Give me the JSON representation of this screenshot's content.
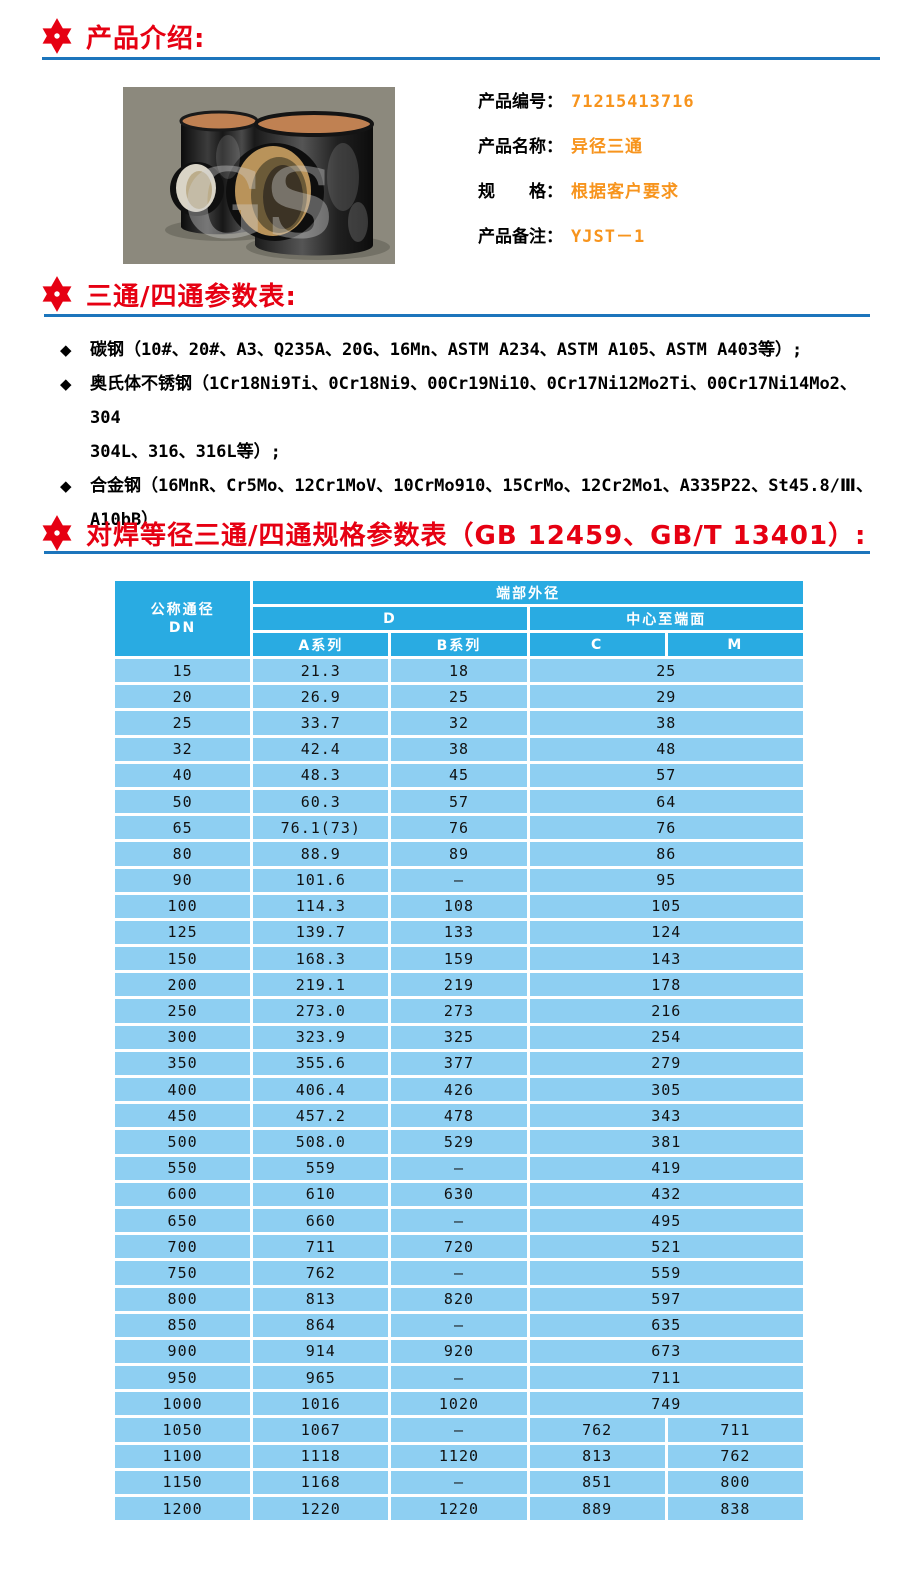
{
  "colors": {
    "accent_red": "#e60012",
    "rule_blue": "#1c75bc",
    "value_orange": "#f7941d",
    "table_header_blue": "#29abe2",
    "table_cell_blue": "#8ecff2"
  },
  "sections": {
    "intro_title": "产品介绍:",
    "params_title": "三通/四通参数表:",
    "spec_title": "对焊等径三通/四通规格参数表（GB 12459、GB/T 13401）:"
  },
  "product": {
    "watermark": "GS",
    "fields": [
      {
        "label": "产品编号：",
        "value": "71215413716"
      },
      {
        "label": "产品名称：",
        "value": "异径三通"
      },
      {
        "label": "规　　格：",
        "value": "根据客户要求"
      },
      {
        "label": "产品备注：",
        "value": "YJST－1"
      }
    ]
  },
  "materials": {
    "items": [
      {
        "lines": [
          "碳钢（10#、20#、A3、Q235A、20G、16Mn、ASTM A234、ASTM A105、ASTM A403等）;"
        ]
      },
      {
        "lines": [
          "奥氏体不锈钢（1Cr18Ni9Ti、0Cr18Ni9、00Cr19Ni10、0Cr17Ni12Mo2Ti、00Cr17Ni14Mo2、304",
          "304L、316、316L等）;"
        ]
      },
      {
        "lines": [
          "合金钢（16MnR、Cr5Mo、12Cr1MoV、10CrMo910、15CrMo、12Cr2Mo1、A335P22、St45.8/Ⅲ、",
          "A10bB）"
        ]
      }
    ]
  },
  "spec_table": {
    "header": {
      "dn_line1": "公称通径",
      "dn_line2": "DN",
      "end_od": "端部外径",
      "d": "D",
      "center_to_end": "中心至端面",
      "a_series": "A系列",
      "b_series": "B系列",
      "c": "C",
      "m": "M"
    },
    "rows": [
      {
        "dn": "15",
        "a": "21.3",
        "b": "18",
        "cm": "25"
      },
      {
        "dn": "20",
        "a": "26.9",
        "b": "25",
        "cm": "29"
      },
      {
        "dn": "25",
        "a": "33.7",
        "b": "32",
        "cm": "38"
      },
      {
        "dn": "32",
        "a": "42.4",
        "b": "38",
        "cm": "48"
      },
      {
        "dn": "40",
        "a": "48.3",
        "b": "45",
        "cm": "57"
      },
      {
        "dn": "50",
        "a": "60.3",
        "b": "57",
        "cm": "64"
      },
      {
        "dn": "65",
        "a": "76.1(73)",
        "b": "76",
        "cm": "76"
      },
      {
        "dn": "80",
        "a": "88.9",
        "b": "89",
        "cm": "86"
      },
      {
        "dn": "90",
        "a": "101.6",
        "b": "—",
        "cm": "95"
      },
      {
        "dn": "100",
        "a": "114.3",
        "b": "108",
        "cm": "105"
      },
      {
        "dn": "125",
        "a": "139.7",
        "b": "133",
        "cm": "124"
      },
      {
        "dn": "150",
        "a": "168.3",
        "b": "159",
        "cm": "143"
      },
      {
        "dn": "200",
        "a": "219.1",
        "b": "219",
        "cm": "178"
      },
      {
        "dn": "250",
        "a": "273.0",
        "b": "273",
        "cm": "216"
      },
      {
        "dn": "300",
        "a": "323.9",
        "b": "325",
        "cm": "254"
      },
      {
        "dn": "350",
        "a": "355.6",
        "b": "377",
        "cm": "279"
      },
      {
        "dn": "400",
        "a": "406.4",
        "b": "426",
        "cm": "305"
      },
      {
        "dn": "450",
        "a": "457.2",
        "b": "478",
        "cm": "343"
      },
      {
        "dn": "500",
        "a": "508.0",
        "b": "529",
        "cm": "381"
      },
      {
        "dn": "550",
        "a": "559",
        "b": "—",
        "cm": "419"
      },
      {
        "dn": "600",
        "a": "610",
        "b": "630",
        "cm": "432"
      },
      {
        "dn": "650",
        "a": "660",
        "b": "—",
        "cm": "495"
      },
      {
        "dn": "700",
        "a": "711",
        "b": "720",
        "cm": "521"
      },
      {
        "dn": "750",
        "a": "762",
        "b": "—",
        "cm": "559"
      },
      {
        "dn": "800",
        "a": "813",
        "b": "820",
        "cm": "597"
      },
      {
        "dn": "850",
        "a": "864",
        "b": "—",
        "cm": "635"
      },
      {
        "dn": "900",
        "a": "914",
        "b": "920",
        "cm": "673"
      },
      {
        "dn": "950",
        "a": "965",
        "b": "—",
        "cm": "711"
      },
      {
        "dn": "1000",
        "a": "1016",
        "b": "1020",
        "cm": "749"
      },
      {
        "dn": "1050",
        "a": "1067",
        "b": "—",
        "c": "762",
        "m": "711"
      },
      {
        "dn": "1100",
        "a": "1118",
        "b": "1120",
        "c": "813",
        "m": "762"
      },
      {
        "dn": "1150",
        "a": "1168",
        "b": "—",
        "c": "851",
        "m": "800"
      },
      {
        "dn": "1200",
        "a": "1220",
        "b": "1220",
        "c": "889",
        "m": "838"
      }
    ]
  }
}
